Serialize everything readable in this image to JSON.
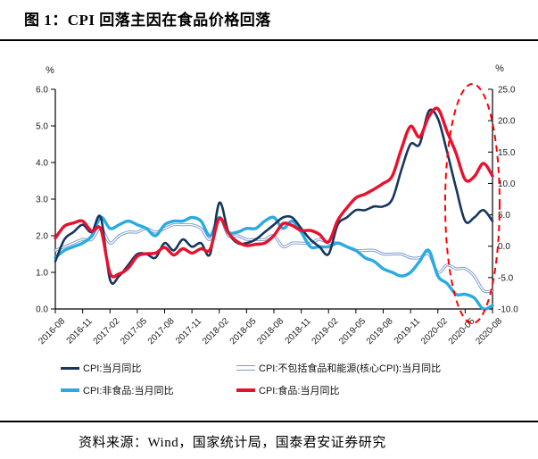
{
  "figure": {
    "title": "图 1：CPI 回落主因在食品价格回落",
    "source": "资料来源：Wind，国家统计局，国泰君安证券研究"
  },
  "legend": {
    "items": [
      {
        "label": "CPI:当月同比",
        "color": "#17365d",
        "style": "single",
        "thick": false
      },
      {
        "label": "CPI:不包括食品和能源(核心CPI):当月同比",
        "color": "#7a9bd0",
        "style": "double",
        "thick": false
      },
      {
        "label": "CPI:非食品:当月同比",
        "color": "#29abe2",
        "style": "single",
        "thick": true
      },
      {
        "label": "CPI:食品:当月同比",
        "color": "#e8112d",
        "style": "single",
        "thick": true
      }
    ]
  },
  "chart_data": {
    "type": "line",
    "title": "图 1：CPI 回落主因在食品价格回落",
    "grid": false,
    "legend_position": "bottom",
    "left_axis": {
      "unit": "%",
      "range": [
        0,
        6
      ],
      "ticks": [
        6,
        5,
        4,
        3,
        2,
        1,
        0
      ],
      "tick_format": "0.0"
    },
    "right_axis": {
      "unit": "%",
      "range": [
        -10,
        25
      ],
      "ticks": [
        25,
        20,
        15,
        10,
        5,
        0,
        -5,
        -10
      ],
      "tick_format": "0.0"
    },
    "x": [
      "2016-08",
      "2016-09",
      "2016-10",
      "2016-11",
      "2016-12",
      "2017-01",
      "2017-02",
      "2017-03",
      "2017-04",
      "2017-05",
      "2017-06",
      "2017-07",
      "2017-08",
      "2017-09",
      "2017-10",
      "2017-11",
      "2017-12",
      "2018-01",
      "2018-02",
      "2018-03",
      "2018-04",
      "2018-05",
      "2018-06",
      "2018-07",
      "2018-08",
      "2018-09",
      "2018-10",
      "2018-11",
      "2018-12",
      "2019-01",
      "2019-02",
      "2019-03",
      "2019-04",
      "2019-05",
      "2019-06",
      "2019-07",
      "2019-08",
      "2019-09",
      "2019-10",
      "2019-11",
      "2019-12",
      "2020-01",
      "2020-02",
      "2020-03",
      "2020-04",
      "2020-05",
      "2020-06",
      "2020-07",
      "2020-08"
    ],
    "x_tick_labels": [
      "2016-08",
      "2016-11",
      "2017-02",
      "2017-05",
      "2017-08",
      "2017-11",
      "2018-02",
      "2018-05",
      "2018-08",
      "2018-11",
      "2019-02",
      "2019-05",
      "2019-08",
      "2019-11",
      "2020-02",
      "2020-05",
      "2020-08"
    ],
    "x_tick_step": 3,
    "series": [
      {
        "name": "CPI:当月同比",
        "axis": "left",
        "color": "#17365d",
        "width": 2.6,
        "style": "single",
        "values": [
          1.3,
          1.9,
          2.1,
          2.3,
          2.1,
          2.5,
          0.8,
          0.9,
          1.2,
          1.5,
          1.5,
          1.4,
          1.8,
          1.6,
          1.9,
          1.7,
          1.8,
          1.5,
          2.9,
          2.1,
          1.8,
          1.8,
          1.9,
          2.1,
          2.3,
          2.5,
          2.5,
          2.2,
          1.9,
          1.7,
          1.5,
          2.3,
          2.5,
          2.7,
          2.7,
          2.8,
          2.8,
          3.0,
          3.8,
          4.5,
          4.5,
          5.4,
          5.2,
          4.3,
          3.3,
          2.4,
          2.5,
          2.7,
          2.4
        ]
      },
      {
        "name": "CPI:不包括食品和能源(核心CPI):当月同比",
        "axis": "left",
        "color": "#7a9bd0",
        "width": 3.2,
        "style": "double",
        "values": [
          1.6,
          1.7,
          1.8,
          1.9,
          1.9,
          2.2,
          1.8,
          2.0,
          2.1,
          2.1,
          2.2,
          2.1,
          2.2,
          2.3,
          2.3,
          2.3,
          2.2,
          1.9,
          2.5,
          2.0,
          2.0,
          1.9,
          1.9,
          1.9,
          2.0,
          1.7,
          1.8,
          1.8,
          1.8,
          1.9,
          1.8,
          1.8,
          1.7,
          1.6,
          1.6,
          1.6,
          1.5,
          1.5,
          1.5,
          1.4,
          1.4,
          1.5,
          1.0,
          1.2,
          1.1,
          1.1,
          0.9,
          0.5,
          0.5
        ]
      },
      {
        "name": "CPI:非食品:当月同比",
        "axis": "left",
        "color": "#29abe2",
        "width": 3.4,
        "style": "single",
        "values": [
          1.4,
          1.6,
          1.7,
          1.8,
          2.0,
          2.5,
          2.2,
          2.3,
          2.4,
          2.3,
          2.2,
          2.0,
          2.3,
          2.4,
          2.4,
          2.5,
          2.4,
          2.0,
          2.5,
          2.1,
          2.1,
          2.2,
          2.2,
          2.4,
          2.5,
          2.2,
          2.4,
          2.1,
          1.7,
          1.7,
          1.7,
          1.8,
          1.7,
          1.6,
          1.4,
          1.3,
          1.1,
          1.0,
          0.9,
          1.0,
          1.3,
          1.6,
          0.9,
          0.7,
          0.4,
          0.4,
          0.3,
          0.0,
          0.1
        ]
      },
      {
        "name": "CPI:食品:当月同比",
        "axis": "right",
        "color": "#e8112d",
        "width": 3.4,
        "style": "single",
        "values": [
          1.3,
          3.2,
          3.7,
          4.0,
          2.4,
          2.7,
          -4.3,
          -4.4,
          -3.5,
          -1.6,
          -1.2,
          -1.1,
          -0.2,
          -1.4,
          -0.4,
          -1.1,
          -0.4,
          -0.5,
          4.4,
          2.1,
          0.7,
          0.1,
          0.3,
          0.5,
          1.7,
          3.6,
          3.3,
          2.5,
          2.5,
          1.9,
          0.7,
          4.1,
          6.1,
          7.7,
          8.3,
          9.1,
          10.0,
          11.2,
          15.5,
          19.1,
          17.4,
          20.6,
          21.9,
          18.3,
          14.8,
          10.6,
          11.1,
          13.2,
          11.2
        ]
      }
    ],
    "annotation": {
      "shape": "dashed-ellipse",
      "color": "#ff0000",
      "x_range": [
        "2020-03",
        "2020-08"
      ]
    }
  }
}
